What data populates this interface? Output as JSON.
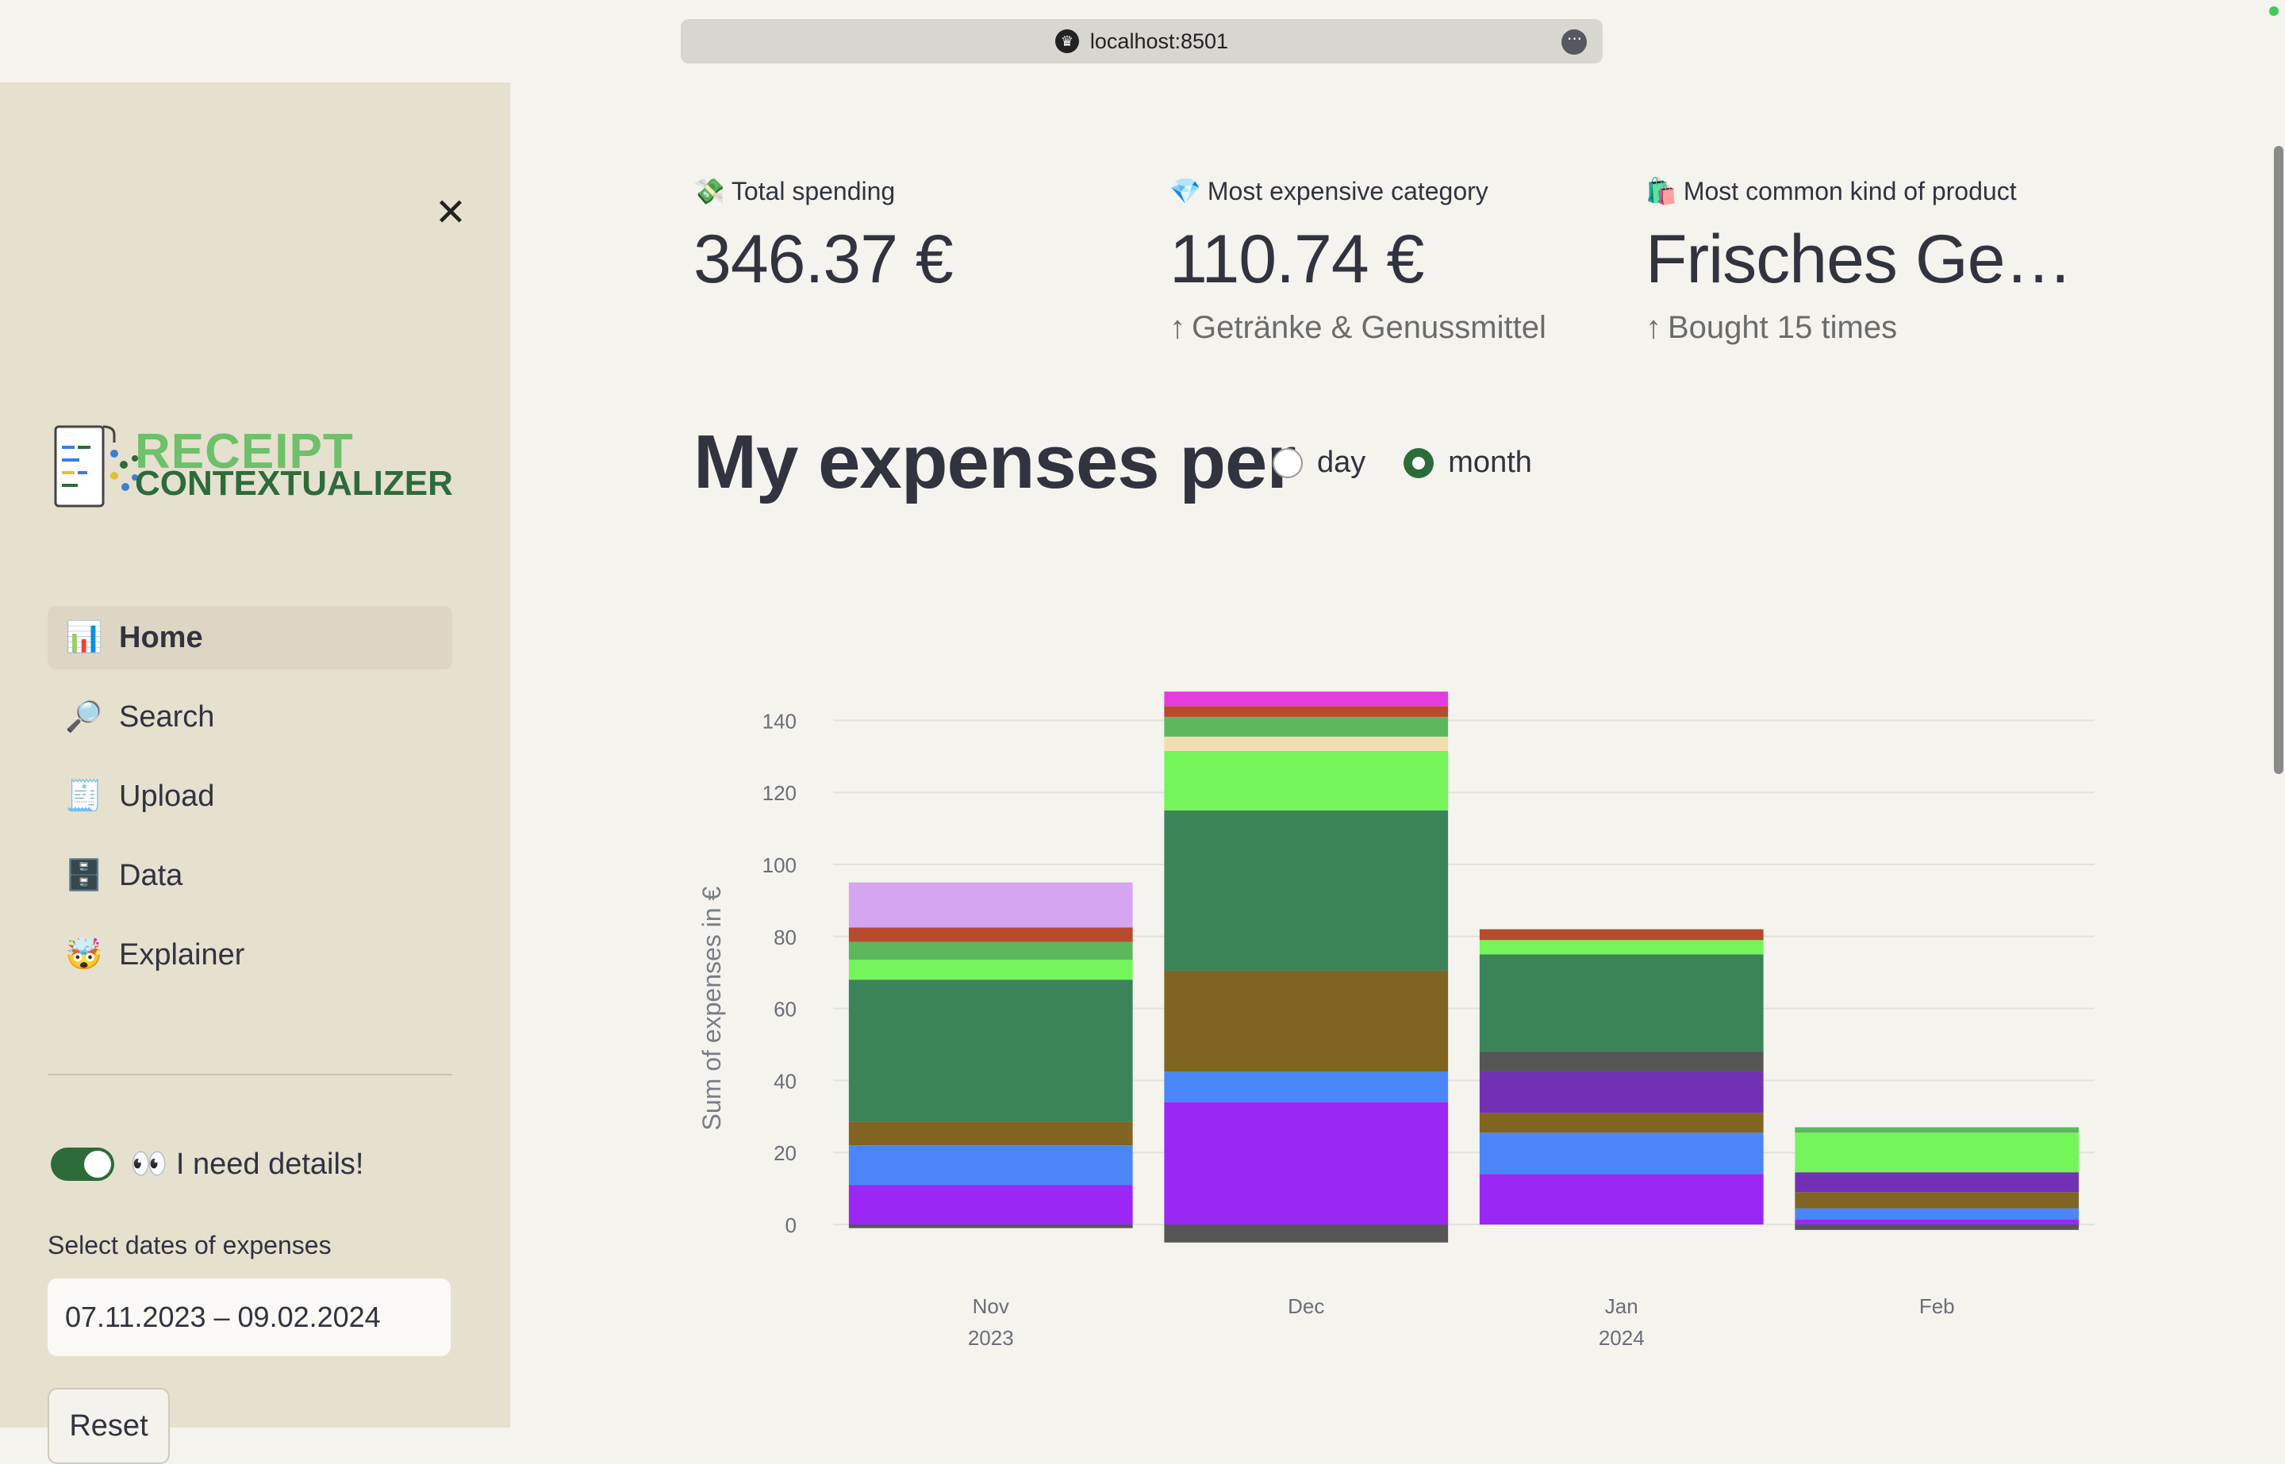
{
  "browser": {
    "url": "localhost:8501"
  },
  "sidebar": {
    "logo": {
      "line1": "RECEIPT",
      "line2": "CONTEXTUALIZER"
    },
    "nav": [
      {
        "icon": "bar-chart-icon",
        "glyph": "📊",
        "label": "Home",
        "active": true
      },
      {
        "icon": "magnifier-icon",
        "glyph": "🔎",
        "label": "Search",
        "active": false
      },
      {
        "icon": "receipt-icon",
        "glyph": "🧾",
        "label": "Upload",
        "active": false
      },
      {
        "icon": "file-cabinet-icon",
        "glyph": "🗄️",
        "label": "Data",
        "active": false
      },
      {
        "icon": "exploding-head-icon",
        "glyph": "🤯",
        "label": "Explainer",
        "active": false
      }
    ],
    "details_toggle": {
      "label": "👀 I need details!",
      "on": true
    },
    "date_label": "Select dates of expenses",
    "date_value": "07.11.2023 – 09.02.2024",
    "reset_label": "Reset"
  },
  "metrics": [
    {
      "icon": "money-with-wings-icon",
      "glyph": "💸",
      "label": "Total spending",
      "value": "346.37 €",
      "delta": ""
    },
    {
      "icon": "gem-icon",
      "glyph": "💎",
      "label": "Most expensive category",
      "value": "110.74 €",
      "delta": "Getränke & Genussmittel"
    },
    {
      "icon": "shopping-bags-icon",
      "glyph": "🛍️",
      "label": "Most common kind of product",
      "value": "Frisches Ge…",
      "delta": "Bought 15 times"
    }
  ],
  "section": {
    "title": "My expenses per",
    "options": [
      {
        "label": "day",
        "selected": false
      },
      {
        "label": "month",
        "selected": true
      }
    ]
  },
  "chart_data": {
    "type": "bar",
    "stacked": true,
    "categories": [
      "Nov\n2023",
      "Dec",
      "Jan\n2024",
      "Feb"
    ],
    "ylabel": "Sum of expenses in €",
    "ylim": [
      -5,
      150
    ],
    "yticks": [
      0,
      20,
      40,
      60,
      80,
      100,
      120,
      140
    ],
    "grid": true,
    "legend": "none",
    "stacks": [
      [
        {
          "value": -1,
          "color": "#555555"
        },
        {
          "value": 11,
          "color": "#9b27f5"
        },
        {
          "value": 11,
          "color": "#4a86f7"
        },
        {
          "value": 6.5,
          "color": "#7f6422"
        },
        {
          "value": 39.5,
          "color": "#3b8459"
        },
        {
          "value": 5.5,
          "color": "#74f55a"
        },
        {
          "value": 5,
          "color": "#5cb85c"
        },
        {
          "value": 4,
          "color": "#b84a2e"
        },
        {
          "value": 12.5,
          "color": "#d6a5f2"
        }
      ],
      [
        {
          "value": -5,
          "color": "#555555"
        },
        {
          "value": 34,
          "color": "#9b27f5"
        },
        {
          "value": 8.5,
          "color": "#4a86f7"
        },
        {
          "value": 28,
          "color": "#7f6422"
        },
        {
          "value": 44.5,
          "color": "#3b8459"
        },
        {
          "value": 16.5,
          "color": "#74f55a"
        },
        {
          "value": 4,
          "color": "#f0deb0"
        },
        {
          "value": 5.5,
          "color": "#5cb85c"
        },
        {
          "value": 3,
          "color": "#b84a2e"
        },
        {
          "value": 4,
          "color": "#e53ce0"
        }
      ],
      [
        {
          "value": 14,
          "color": "#9b27f5"
        },
        {
          "value": 11.5,
          "color": "#4a86f7"
        },
        {
          "value": 5.5,
          "color": "#7f6422"
        },
        {
          "value": 11.5,
          "color": "#7231b5"
        },
        {
          "value": 5.5,
          "color": "#555555"
        },
        {
          "value": 27,
          "color": "#3b8459"
        },
        {
          "value": 4,
          "color": "#74f55a"
        },
        {
          "value": 3,
          "color": "#b84a2e"
        }
      ],
      [
        {
          "value": -1.5,
          "color": "#555555"
        },
        {
          "value": 1.5,
          "color": "#9b27f5"
        },
        {
          "value": 3,
          "color": "#4a86f7"
        },
        {
          "value": 4.5,
          "color": "#7f6422"
        },
        {
          "value": 5.5,
          "color": "#7231b5"
        },
        {
          "value": 11,
          "color": "#74f55a"
        },
        {
          "value": 1.5,
          "color": "#5cb85c"
        }
      ]
    ]
  }
}
